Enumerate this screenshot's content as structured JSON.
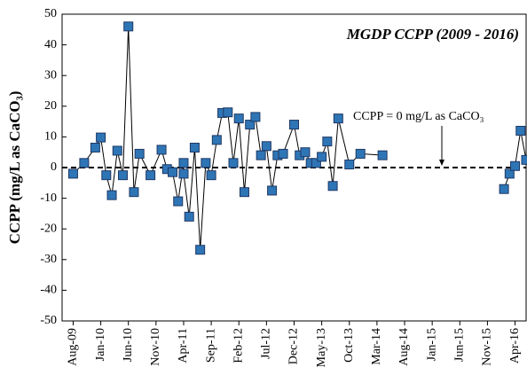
{
  "chart_data": {
    "type": "line",
    "title": "MGDP CCPP (2009 - 2016)",
    "y_label": "CCPP (mg/L as CaCO₃)",
    "annotation": "CCPP = 0 mg/L as CaCO₃",
    "reference_line": 0,
    "x": [
      "2009-08",
      "2009-10",
      "2009-12",
      "2010-01",
      "2010-02",
      "2010-03",
      "2010-04",
      "2010-05",
      "2010-06",
      "2010-07",
      "2010-08",
      "2010-10",
      "2010-12",
      "2011-01",
      "2011-02",
      "2011-03",
      "2011-04",
      "2011-04",
      "2011-05",
      "2011-06",
      "2011-07",
      "2011-08",
      "2011-09",
      "2011-10",
      "2011-11",
      "2011-12",
      "2012-01",
      "2012-02",
      "2012-03",
      "2012-04",
      "2012-05",
      "2012-06",
      "2012-07",
      "2012-08",
      "2012-09",
      "2012-10",
      "2012-12",
      "2013-01",
      "2013-02",
      "2013-03",
      "2013-04",
      "2013-05",
      "2013-06",
      "2013-07",
      "2013-08",
      "2013-10",
      "2013-12",
      "2014-04",
      "2015-03",
      "2016-02",
      "2016-03",
      "2016-04",
      "2016-05",
      "2016-06"
    ],
    "series": [
      {
        "name": "CCPP",
        "color": "#2e75b6",
        "values": [
          -2,
          1.5,
          6.5,
          9.8,
          -2.5,
          -9,
          5.5,
          -2.5,
          46,
          -8,
          4.5,
          -2.5,
          5.8,
          -0.5,
          -1.5,
          -11,
          1.5,
          -2,
          -16,
          6.5,
          -26.8,
          1.5,
          -2.5,
          9,
          17.8,
          18,
          1.5,
          16,
          -8,
          14,
          16.5,
          4,
          7,
          -7.5,
          4,
          4.5,
          14,
          4,
          5,
          1.5,
          1.5,
          3.5,
          8.5,
          -6,
          16,
          1,
          4.5,
          4,
          null,
          -7,
          -2,
          0.5,
          12,
          2.5
        ]
      }
    ],
    "xlim": [
      "2009-06",
      "2016-06"
    ],
    "xticks": [
      {
        "value": "2009-08",
        "label": "Aug-09"
      },
      {
        "value": "2010-01",
        "label": "Jan-10"
      },
      {
        "value": "2010-06",
        "label": "Jun-10"
      },
      {
        "value": "2010-11",
        "label": "Nov-10"
      },
      {
        "value": "2011-04",
        "label": "Apr-11"
      },
      {
        "value": "2011-09",
        "label": "Sep-11"
      },
      {
        "value": "2012-02",
        "label": "Feb-12"
      },
      {
        "value": "2012-07",
        "label": "Jul-12"
      },
      {
        "value": "2012-12",
        "label": "Dec-12"
      },
      {
        "value": "2013-05",
        "label": "May-13"
      },
      {
        "value": "2013-10",
        "label": "Oct-13"
      },
      {
        "value": "2014-03",
        "label": "Mar-14"
      },
      {
        "value": "2014-08",
        "label": "Aug-14"
      },
      {
        "value": "2015-01",
        "label": "Jan-15"
      },
      {
        "value": "2015-06",
        "label": "Jun-15"
      },
      {
        "value": "2015-11",
        "label": "Nov-15"
      },
      {
        "value": "2016-04",
        "label": "Apr-16"
      }
    ],
    "ylim": [
      -50,
      50
    ],
    "yticks": [
      -50,
      -40,
      -30,
      -20,
      -10,
      0,
      10,
      20,
      30,
      40,
      50
    ],
    "grid": false
  }
}
